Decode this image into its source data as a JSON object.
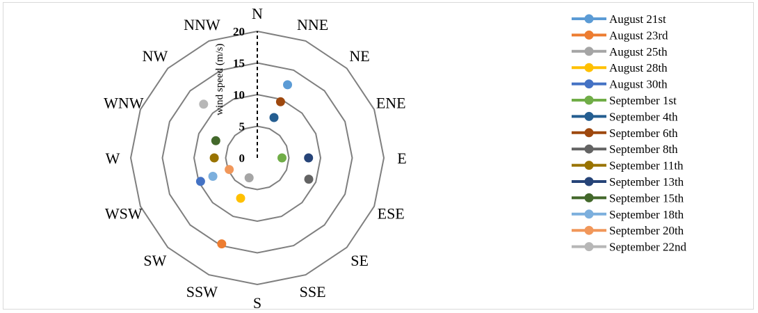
{
  "chart_data": {
    "type": "scatter",
    "subtype": "radar",
    "title": "",
    "radial_axis_label": "wind speed (m/s)",
    "radial_range": [
      0,
      20
    ],
    "radial_ticks": [
      "0",
      "5",
      "10",
      "15",
      "20"
    ],
    "directions": [
      "N",
      "NNE",
      "NE",
      "ENE",
      "E",
      "ESE",
      "SE",
      "SSE",
      "S",
      "SSW",
      "SW",
      "WSW",
      "W",
      "WNW",
      "NW",
      "NNW"
    ],
    "legend_position": "right",
    "series": [
      {
        "name": "August 21st",
        "color": "#5b9bd5",
        "direction": "NNE",
        "value": 12.5
      },
      {
        "name": "August 23rd",
        "color": "#ed7d31",
        "direction": "SSW",
        "value": 14.7
      },
      {
        "name": "August 25th",
        "color": "#a5a5a5",
        "direction": "SSW",
        "value": 3.4
      },
      {
        "name": "August 28th",
        "color": "#ffc000",
        "direction": "SSW",
        "value": 6.9
      },
      {
        "name": "August 30th",
        "color": "#4472c4",
        "direction": "WSW",
        "value": 9.7
      },
      {
        "name": "September 1st",
        "color": "#70ad47",
        "direction": "E",
        "value": 3.9
      },
      {
        "name": "September 4th",
        "color": "#255e91",
        "direction": "NNE",
        "value": 6.9
      },
      {
        "name": "September 6th",
        "color": "#9e480e",
        "direction": "NNE",
        "value": 9.6
      },
      {
        "name": "September 8th",
        "color": "#636363",
        "direction": "ESE",
        "value": 8.8
      },
      {
        "name": "September 11th",
        "color": "#997300",
        "direction": "W",
        "value": 6.8
      },
      {
        "name": "September 13th",
        "color": "#264478",
        "direction": "E",
        "value": 8.1
      },
      {
        "name": "September 15th",
        "color": "#43682b",
        "direction": "WNW",
        "value": 7.1
      },
      {
        "name": "September 18th",
        "color": "#7cafdd",
        "direction": "WSW",
        "value": 7.6
      },
      {
        "name": "September 20th",
        "color": "#f1975a",
        "direction": "WSW",
        "value": 4.8
      },
      {
        "name": "September 22nd",
        "color": "#b7b7b7",
        "direction": "NW",
        "value": 12.0
      }
    ]
  }
}
